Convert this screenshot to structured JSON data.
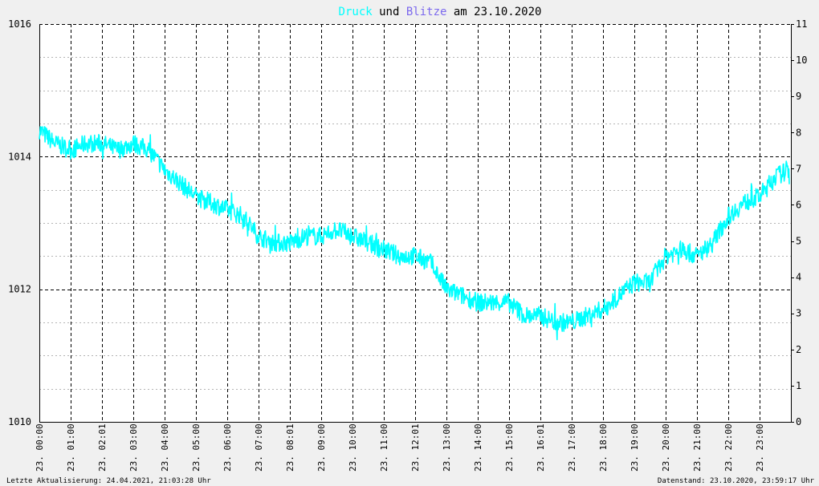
{
  "title": {
    "parts": [
      {
        "text": "Druck",
        "color": "#00ffff"
      },
      {
        "text": " und ",
        "color": "#000000"
      },
      {
        "text": "Blitze",
        "color": "#7b68ee"
      },
      {
        "text": " am 23.10.2020",
        "color": "#000000"
      }
    ]
  },
  "footer": {
    "left": "Letzte Aktualisierung: 24.04.2021, 21:03:28 Uhr",
    "right": "Datenstand: 23.10.2020, 23:59:17 Uhr"
  },
  "colors": {
    "background": "#f0f0f0",
    "plot_background": "#ffffff",
    "series_druck": "#00ffff",
    "grid_major": "#000000",
    "grid_minor": "#b4b4b4"
  },
  "chart_data": {
    "type": "line",
    "title": "Druck und Blitze am 23.10.2020",
    "x_range": [
      0,
      24
    ],
    "y_left": {
      "min": 1010,
      "max": 1016,
      "tick_labels": [
        "1010",
        "1012",
        "1014",
        "1016"
      ],
      "minor_step": 0.5
    },
    "y_right": {
      "min": 0,
      "max": 11,
      "tick_labels": [
        "0",
        "1",
        "2",
        "3",
        "4",
        "5",
        "6",
        "7",
        "8",
        "9",
        "10",
        "11"
      ]
    },
    "x_tick_labels": [
      "23. 00:00",
      "23. 01:00",
      "23. 02:01",
      "23. 03:00",
      "23. 04:00",
      "23. 05:00",
      "23. 06:00",
      "23. 07:00",
      "23. 08:01",
      "23. 09:00",
      "23. 10:00",
      "23. 11:00",
      "23. 12:01",
      "23. 13:00",
      "23. 14:00",
      "23. 15:00",
      "23. 16:01",
      "23. 17:00",
      "23. 18:00",
      "23. 19:00",
      "23. 20:00",
      "23. 21:00",
      "23. 22:00",
      "23. 23:00"
    ],
    "grid": true,
    "series": [
      {
        "name": "Druck",
        "axis": "left",
        "x_hours": [
          0.0,
          0.5,
          1.0,
          1.5,
          2.0,
          2.5,
          3.0,
          3.5,
          4.0,
          4.5,
          5.0,
          5.5,
          6.0,
          6.5,
          7.0,
          7.5,
          8.0,
          8.5,
          9.0,
          9.5,
          10.0,
          10.5,
          11.0,
          11.5,
          12.0,
          12.5,
          13.0,
          13.5,
          14.0,
          14.5,
          15.0,
          15.5,
          16.0,
          16.5,
          17.0,
          17.5,
          18.0,
          18.5,
          19.0,
          19.5,
          20.0,
          20.5,
          21.0,
          21.5,
          22.0,
          22.5,
          23.0,
          23.5,
          23.95
        ],
        "values": [
          1014.4,
          1014.2,
          1014.1,
          1014.2,
          1014.2,
          1014.1,
          1014.2,
          1014.1,
          1013.8,
          1013.6,
          1013.4,
          1013.3,
          1013.2,
          1013.1,
          1012.8,
          1012.7,
          1012.7,
          1012.8,
          1012.8,
          1012.9,
          1012.8,
          1012.7,
          1012.6,
          1012.5,
          1012.5,
          1012.4,
          1012.0,
          1011.9,
          1011.8,
          1011.8,
          1011.8,
          1011.6,
          1011.6,
          1011.5,
          1011.5,
          1011.6,
          1011.7,
          1011.9,
          1012.1,
          1012.1,
          1012.5,
          1012.6,
          1012.5,
          1012.7,
          1013.1,
          1013.3,
          1013.4,
          1013.7,
          1013.8
        ]
      },
      {
        "name": "Blitze",
        "axis": "right",
        "values": []
      }
    ]
  }
}
